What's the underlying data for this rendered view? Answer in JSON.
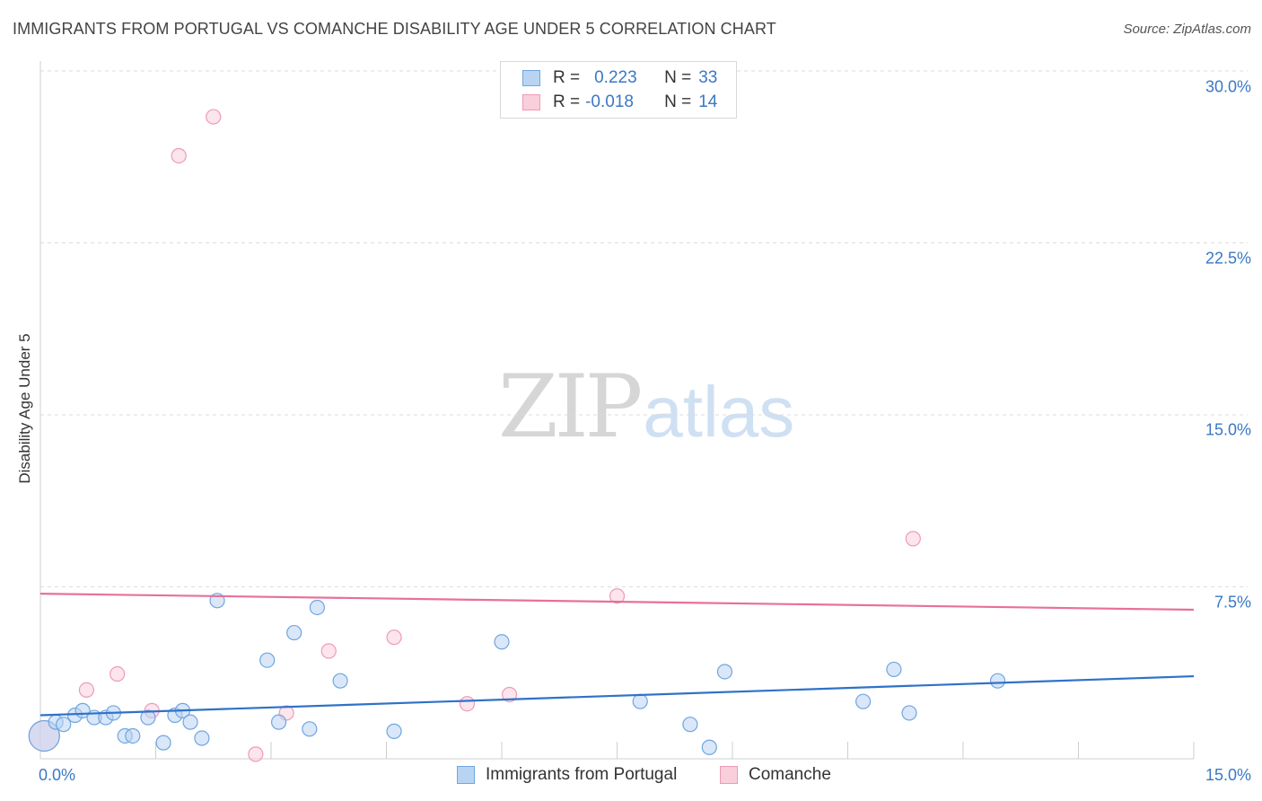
{
  "title": "IMMIGRANTS FROM PORTUGAL VS COMANCHE DISABILITY AGE UNDER 5 CORRELATION CHART",
  "source": "Source: ZipAtlas.com",
  "watermark": {
    "zip": "ZIP",
    "atlas": "atlas"
  },
  "colors": {
    "blue": "#6ea6e0",
    "blue_fill": "#b9d4f3",
    "blue_line": "#2f72c8",
    "pink": "#ef9ab5",
    "pink_fill": "#f9cfdc",
    "pink_line": "#e8709a",
    "axis_text": "#3a78c4"
  },
  "stats": {
    "rows": [
      {
        "r_label": "R =",
        "r_value": "0.223",
        "n_label": "N =",
        "n_value": "33"
      },
      {
        "r_label": "R =",
        "r_value": "-0.018",
        "n_label": "N =",
        "n_value": "14"
      }
    ]
  },
  "legend": {
    "items": [
      {
        "label": "Immigrants from Portugal"
      },
      {
        "label": "Comanche"
      }
    ]
  },
  "chart_data": {
    "type": "scatter",
    "title": "IMMIGRANTS FROM PORTUGAL VS COMANCHE DISABILITY AGE UNDER 5 CORRELATION CHART",
    "xlabel": "",
    "ylabel": "Disability Age Under 5",
    "xlim": [
      0,
      15
    ],
    "ylim": [
      0,
      30
    ],
    "x_tick_labels": [
      "0.0%",
      "15.0%"
    ],
    "y_tick_labels": [
      "7.5%",
      "15.0%",
      "22.5%",
      "30.0%"
    ],
    "y_ticks": [
      7.5,
      15.0,
      22.5,
      30.0
    ],
    "grid": true,
    "legend_position": "bottom-center",
    "series": [
      {
        "name": "Immigrants from Portugal",
        "color": "#6ea6e0",
        "trend": {
          "y_at_x0": 1.9,
          "y_at_x15": 3.6
        },
        "points": [
          {
            "x": 0.05,
            "y": 1.0,
            "large": true
          },
          {
            "x": 0.2,
            "y": 1.6
          },
          {
            "x": 0.3,
            "y": 1.5
          },
          {
            "x": 0.45,
            "y": 1.9
          },
          {
            "x": 0.55,
            "y": 2.1
          },
          {
            "x": 0.7,
            "y": 1.8
          },
          {
            "x": 0.85,
            "y": 1.8
          },
          {
            "x": 0.95,
            "y": 2.0
          },
          {
            "x": 1.1,
            "y": 1.0
          },
          {
            "x": 1.2,
            "y": 1.0
          },
          {
            "x": 1.4,
            "y": 1.8
          },
          {
            "x": 1.6,
            "y": 0.7
          },
          {
            "x": 1.75,
            "y": 1.9
          },
          {
            "x": 1.85,
            "y": 2.1
          },
          {
            "x": 1.95,
            "y": 1.6
          },
          {
            "x": 2.1,
            "y": 0.9
          },
          {
            "x": 2.3,
            "y": 6.9
          },
          {
            "x": 2.95,
            "y": 4.3
          },
          {
            "x": 3.1,
            "y": 1.6
          },
          {
            "x": 3.3,
            "y": 5.5
          },
          {
            "x": 3.5,
            "y": 1.3
          },
          {
            "x": 3.6,
            "y": 6.6
          },
          {
            "x": 3.9,
            "y": 3.4
          },
          {
            "x": 4.6,
            "y": 1.2
          },
          {
            "x": 6.0,
            "y": 5.1
          },
          {
            "x": 7.8,
            "y": 2.5
          },
          {
            "x": 8.45,
            "y": 1.5
          },
          {
            "x": 8.7,
            "y": 0.5
          },
          {
            "x": 8.9,
            "y": 3.8
          },
          {
            "x": 10.7,
            "y": 2.5
          },
          {
            "x": 11.1,
            "y": 3.9
          },
          {
            "x": 11.3,
            "y": 2.0
          },
          {
            "x": 12.45,
            "y": 3.4
          }
        ]
      },
      {
        "name": "Comanche",
        "color": "#ef9ab5",
        "trend": {
          "y_at_x0": 7.2,
          "y_at_x15": 6.5
        },
        "points": [
          {
            "x": 0.05,
            "y": 1.0,
            "large": true
          },
          {
            "x": 0.6,
            "y": 3.0
          },
          {
            "x": 1.0,
            "y": 3.7
          },
          {
            "x": 1.45,
            "y": 2.1
          },
          {
            "x": 1.8,
            "y": 26.3
          },
          {
            "x": 2.25,
            "y": 28.0
          },
          {
            "x": 2.8,
            "y": 0.2
          },
          {
            "x": 3.2,
            "y": 2.0
          },
          {
            "x": 3.75,
            "y": 4.7
          },
          {
            "x": 4.6,
            "y": 5.3
          },
          {
            "x": 5.55,
            "y": 2.4
          },
          {
            "x": 6.1,
            "y": 2.8
          },
          {
            "x": 7.5,
            "y": 7.1
          },
          {
            "x": 11.35,
            "y": 9.6
          }
        ]
      }
    ]
  }
}
